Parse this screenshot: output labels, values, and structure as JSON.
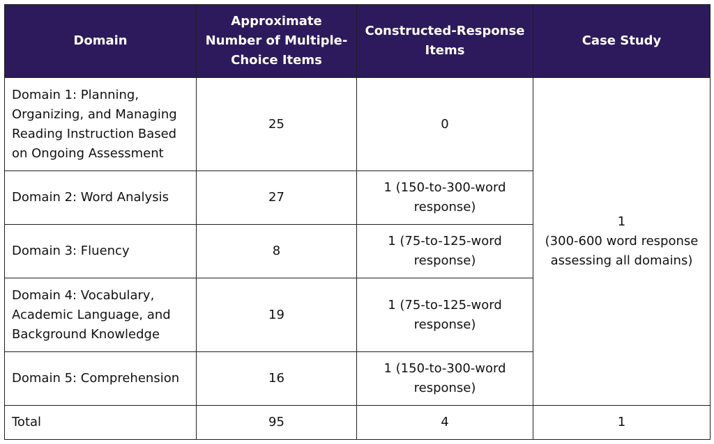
{
  "table": {
    "headers": [
      "Domain",
      "Approximate Number of Multiple-Choice Items",
      "Constructed-Response Items",
      "Case Study"
    ],
    "rows": [
      [
        "Domain 1: Planning, Organizing, and Managing Reading Instruction Based on Ongoing Assessment",
        "25",
        "0"
      ],
      [
        "Domain 2: Word Analysis",
        "27",
        "1 (150-to-300-word response)"
      ],
      [
        "Domain 3: Fluency",
        "8",
        "1 (75-to-125-word response)"
      ],
      [
        "Domain 4: Vocabulary, Academic Language, and Background Knowledge",
        "19",
        "1 (75-to-125-word response)"
      ],
      [
        "Domain 5: Comprehension",
        "16",
        "1 (150-to-300-word response)"
      ]
    ],
    "case_study": {
      "count": "1",
      "note": "(300-600 word response assessing all domains)"
    },
    "total": [
      "Total",
      "95",
      "4",
      "1"
    ]
  }
}
